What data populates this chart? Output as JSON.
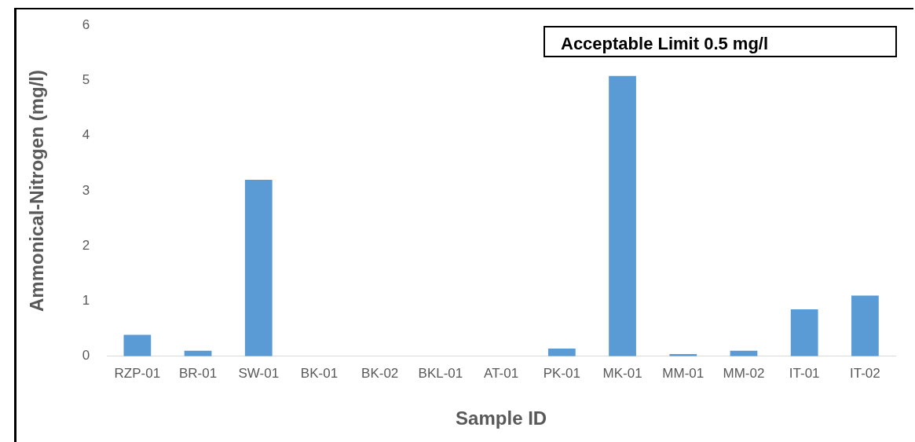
{
  "chart_data": {
    "type": "bar",
    "xlabel": "Sample ID",
    "ylabel": "Ammonical-Nitrogen (mg/l)",
    "categories": [
      "RZP-01",
      "BR-01",
      "SW-01",
      "BK-01",
      "BK-02",
      "BKL-01",
      "AT-01",
      "PK-01",
      "MK-01",
      "MM-01",
      "MM-02",
      "IT-01",
      "IT-02"
    ],
    "values": [
      0.39,
      0.1,
      3.2,
      0,
      0,
      0,
      0,
      0.14,
      5.08,
      0.04,
      0.1,
      0.85,
      1.1
    ],
    "color": "#5b9bd5",
    "ylim": [
      0,
      6
    ],
    "yticks": [
      0,
      1,
      2,
      3,
      4,
      5,
      6
    ],
    "grid": false,
    "legend": false,
    "annotations": [
      "Acceptable Limit 0.5 mg/l"
    ]
  }
}
